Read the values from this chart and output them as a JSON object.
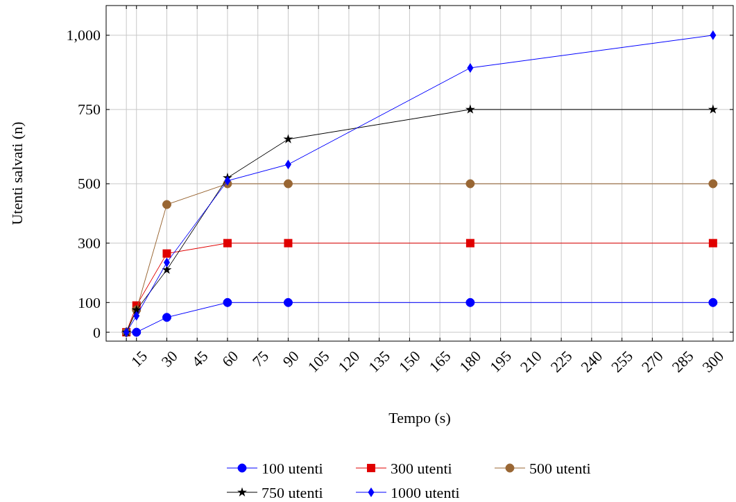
{
  "chart_data": {
    "type": "line",
    "xlabel": "Tempo (s)",
    "ylabel": "Utenti salvati (n)",
    "xlim": [
      0,
      310
    ],
    "ylim": [
      -30,
      1100
    ],
    "xticks": [
      {
        "value": 10,
        "label": null
      },
      15,
      30,
      45,
      60,
      75,
      90,
      105,
      120,
      135,
      150,
      165,
      180,
      195,
      210,
      225,
      240,
      255,
      270,
      285,
      300
    ],
    "yticks": [
      0,
      100,
      300,
      500,
      750,
      {
        "value": 1000,
        "label": "1,000"
      }
    ],
    "grid": true,
    "legend": "bottom",
    "line_style": "solid",
    "x": [
      10,
      15,
      30,
      60,
      90,
      180,
      300
    ],
    "series": [
      {
        "name": "100 utenti",
        "color": "#0000ff",
        "marker": "circle",
        "values": [
          0,
          0,
          50,
          100,
          100,
          100,
          100
        ]
      },
      {
        "name": "300 utenti",
        "color": "#e00000",
        "marker": "square",
        "values": [
          0,
          90,
          265,
          300,
          300,
          300,
          300
        ]
      },
      {
        "name": "500 utenti",
        "color": "#996633",
        "marker": "circle",
        "values": [
          0,
          75,
          430,
          500,
          500,
          500,
          500
        ]
      },
      {
        "name": "750 utenti",
        "color": "#000000",
        "marker": "star",
        "values": [
          0,
          75,
          210,
          520,
          650,
          750,
          750
        ]
      },
      {
        "name": "1000 utenti",
        "color": "#0000ff",
        "marker": "diamond",
        "values": [
          0,
          55,
          235,
          510,
          565,
          890,
          1000
        ]
      }
    ]
  }
}
